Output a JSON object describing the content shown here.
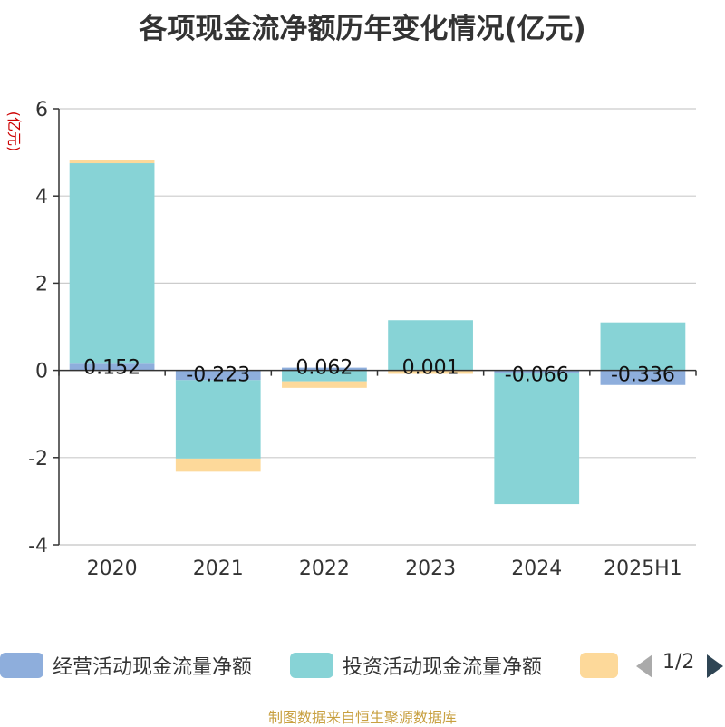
{
  "title": "各项现金流净额历年变化情况(亿元)",
  "source": "制图数据来自恒生聚源数据库",
  "pager": "1/2",
  "colors": {
    "operating": "#8eaedc",
    "investing": "#87d3d6",
    "financing": "#fdd99a",
    "unit_label": "#cc0000"
  },
  "chart_data": {
    "type": "bar",
    "stacked": true,
    "unit_label": "(亿元)",
    "categories": [
      "2020",
      "2021",
      "2022",
      "2023",
      "2024",
      "2025H1"
    ],
    "ylim": [
      -4,
      6
    ],
    "yticks": [
      -4,
      -2,
      0,
      2,
      4,
      6
    ],
    "grid": true,
    "legend_position": "bottom",
    "series": [
      {
        "name": "经营活动现金流量净额",
        "values": [
          0.152,
          -0.223,
          0.062,
          0.001,
          -0.066,
          -0.336
        ]
      },
      {
        "name": "投资活动现金流量净额",
        "values": [
          4.6,
          -1.8,
          -0.25,
          1.15,
          -3.0,
          1.1
        ]
      },
      {
        "name": "",
        "values": [
          0.08,
          -0.3,
          -0.15,
          -0.08,
          0.0,
          0.0
        ]
      }
    ],
    "data_labels": [
      "0.152",
      "-0.223",
      "0.062",
      "0.001",
      "-0.066",
      "-0.336"
    ]
  }
}
